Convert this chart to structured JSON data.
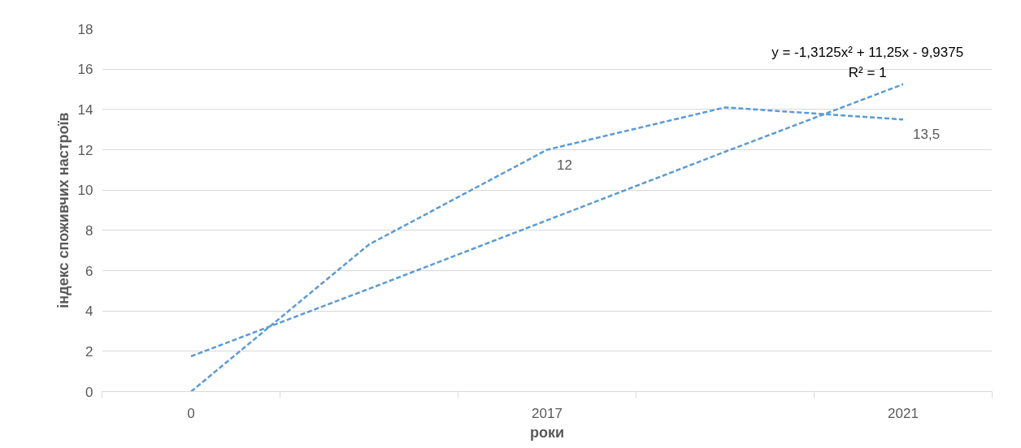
{
  "chart_data": {
    "type": "line",
    "xlabel": "роки",
    "ylabel": "індекс споживчих настроїв",
    "categories": [
      "0",
      null,
      "2017",
      null,
      "2021"
    ],
    "ylim": [
      0,
      18
    ],
    "yticks": [
      0,
      2,
      4,
      6,
      8,
      10,
      12,
      14,
      16,
      18
    ],
    "grid": "y",
    "line_style": "dashed",
    "series": [
      {
        "color": "#5b9bd5",
        "values": [
          0,
          7.3,
          12,
          14.1,
          13.5
        ],
        "value_labels": [
          null,
          null,
          "12",
          null,
          "13,5"
        ]
      },
      {
        "type": "line",
        "color": "#5b9bd5",
        "values": [
          1.75,
          5.1,
          8.5,
          11.9,
          15.25
        ]
      }
    ],
    "annotations": [
      "y = -1,3125x² + 11,25x - 9,9375",
      "R² = 1"
    ]
  }
}
